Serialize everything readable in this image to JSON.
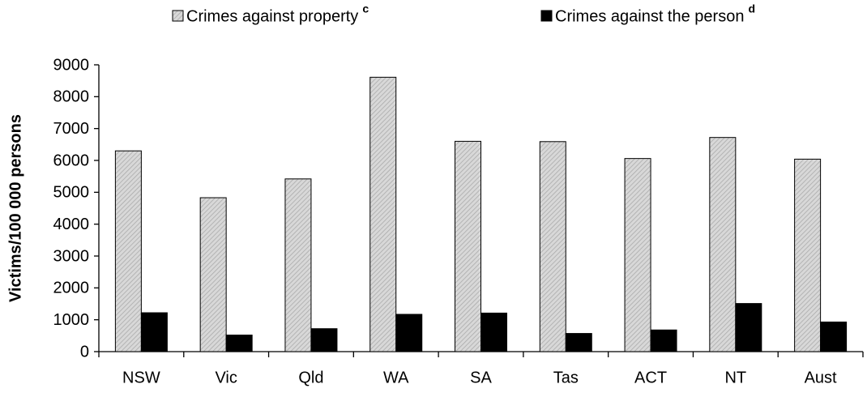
{
  "chart_data": {
    "type": "bar",
    "y_label": "Victims/100 000 persons",
    "categories": [
      "NSW",
      "Vic",
      "Qld",
      "WA",
      "SA",
      "Tas",
      "ACT",
      "NT",
      "Aust"
    ],
    "series": [
      {
        "name": "Crimes against property",
        "note_mark": "c",
        "color": "#c8c8c8",
        "values": [
          6300,
          4830,
          5420,
          8610,
          6600,
          6590,
          6060,
          6720,
          6040
        ]
      },
      {
        "name": "Crimes against the person",
        "note_mark": "d",
        "color": "#000000",
        "values": [
          1220,
          520,
          720,
          1170,
          1210,
          570,
          680,
          1510,
          930
        ]
      }
    ],
    "ylim": [
      0,
      9000
    ],
    "yticks": [
      0,
      1000,
      2000,
      3000,
      4000,
      5000,
      6000,
      7000,
      8000,
      9000
    ],
    "grid": false,
    "legend": "top"
  }
}
